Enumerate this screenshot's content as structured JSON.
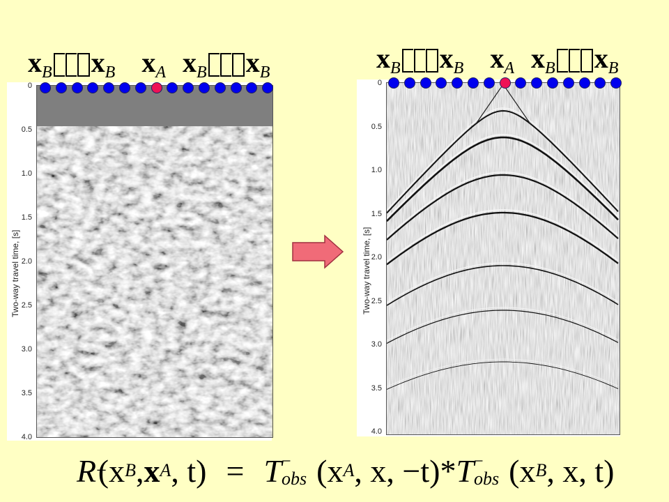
{
  "labels": {
    "x_b": "x",
    "x_b_sub": "B",
    "x_a": "x",
    "x_a_sub": "A"
  },
  "left_panel": {
    "ylabel": "Two-way travel time, [s]",
    "ticks": [
      "0",
      "0.5",
      "1.0",
      "1.5",
      "2.0",
      "2.5",
      "3.0",
      "3.5",
      "4.0"
    ]
  },
  "right_panel": {
    "ylabel": "Two-way travel time, [s]",
    "ticks": [
      "0",
      "0.5",
      "1.0",
      "1.5",
      "2.0",
      "2.5",
      "3.0",
      "3.5",
      "4.0"
    ]
  },
  "colors": {
    "background": "#ffffc4",
    "receiver": "#0000ee",
    "source": "#ee1155",
    "arrow": "#f06070"
  },
  "formula": {
    "lhs_R": "R",
    "lhs_args": "(x",
    "lhs_sub_b": "B",
    "comma": ",",
    "x_a": "x",
    "sub_a": "A",
    "t": ", t)",
    "equals": "=",
    "T": "T",
    "obs": "obs",
    "minus_sup": "−",
    "arg1": "(x",
    "arg1_rest": ", x, −t)",
    "star": "*",
    "arg2": "(x",
    "arg2_rest": ", x, t)"
  }
}
